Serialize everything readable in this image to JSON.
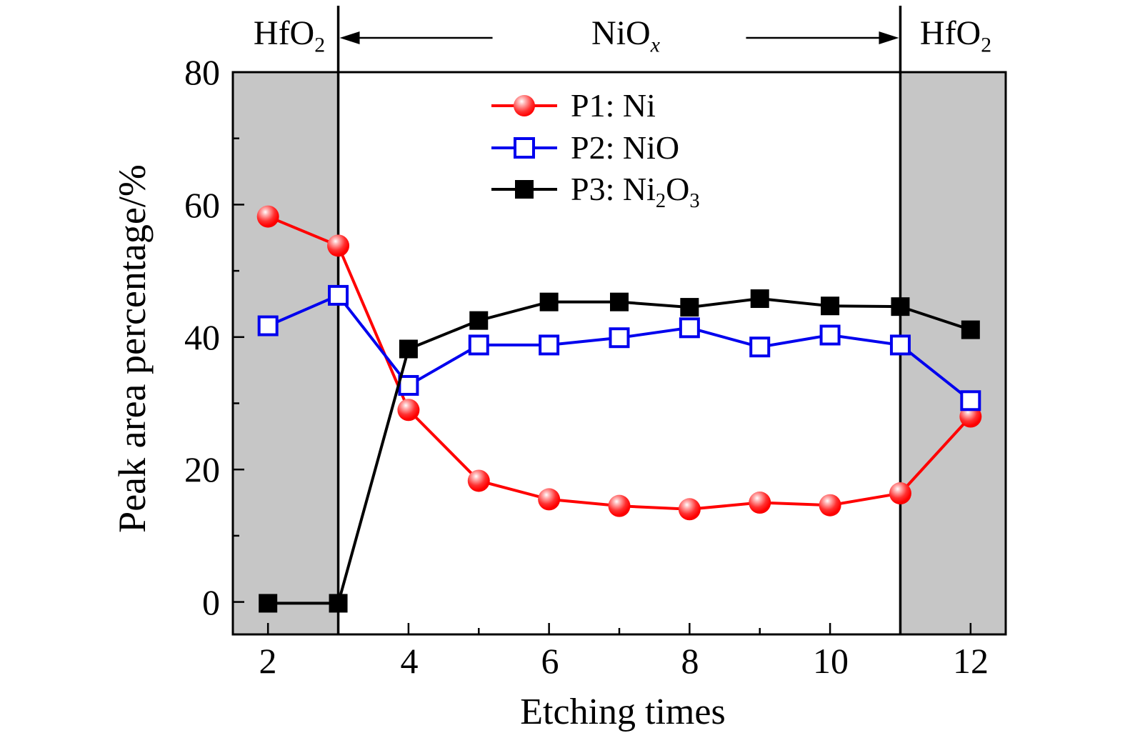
{
  "figure": {
    "x_axis_title": "Etching times",
    "y_axis_title": "Peak area percentage/%"
  },
  "header": {
    "left_region": {
      "base": "HfO",
      "sub": "2"
    },
    "middle_region": {
      "base": "NiO",
      "sub": "x"
    },
    "right_region": {
      "base": "HfO",
      "sub": "2"
    }
  },
  "legend": {
    "items": [
      {
        "t1": "P1: Ni",
        "s1": "",
        "t2": "",
        "s2": ""
      },
      {
        "t1": "P2: NiO",
        "s1": "",
        "t2": "",
        "s2": ""
      },
      {
        "t1": "P3: Ni",
        "s1": "2",
        "t2": "O",
        "s2": "3"
      }
    ]
  },
  "axes": {
    "x_tick_labels": [
      "2",
      "4",
      "6",
      "8",
      "10",
      "12"
    ],
    "y_tick_labels": [
      "80",
      "60",
      "40",
      "20",
      "0"
    ]
  },
  "chart_data": {
    "type": "line",
    "title": "",
    "xlabel": "Etching times",
    "ylabel": "Peak area percentage/%",
    "x": [
      2,
      3,
      4,
      5,
      6,
      7,
      8,
      9,
      10,
      11,
      12
    ],
    "series": [
      {
        "name": "P1: Ni",
        "color": "#ff0000",
        "marker": "sphere",
        "values": [
          58.2,
          53.8,
          29.0,
          18.3,
          15.5,
          14.5,
          14.0,
          15.0,
          14.6,
          16.4,
          28.0
        ]
      },
      {
        "name": "P2: NiO",
        "color": "#0000ee",
        "marker": "open-square",
        "values": [
          41.7,
          46.3,
          32.7,
          38.8,
          38.8,
          39.9,
          41.4,
          38.5,
          40.3,
          38.8,
          30.4
        ]
      },
      {
        "name": "P3: Ni2O3",
        "color": "#000000",
        "marker": "filled-square",
        "values": [
          -0.2,
          -0.2,
          38.2,
          42.5,
          45.3,
          45.3,
          44.5,
          45.8,
          44.7,
          44.6,
          41.1
        ]
      }
    ],
    "xlim": [
      1.5,
      12.5
    ],
    "ylim": [
      -4.9,
      80
    ],
    "x_major_ticks": [
      2,
      4,
      6,
      8,
      10,
      12
    ],
    "x_minor_ticks": [
      3,
      5,
      7,
      9,
      11
    ],
    "y_major_ticks": [
      0,
      20,
      40,
      60,
      80
    ],
    "y_minor_ticks": [
      10,
      30,
      50,
      70
    ],
    "grid": false,
    "legend_position": "upper-center-inside",
    "shaded_regions": [
      {
        "label": "HfO2",
        "from": 1.5,
        "to": 3,
        "shaded": true
      },
      {
        "label": "NiOx",
        "from": 3,
        "to": 11,
        "shaded": false
      },
      {
        "label": "HfO2",
        "from": 11,
        "to": 12.5,
        "shaded": true
      }
    ],
    "region_shade_color": "#c6c6c6",
    "region_dividers": [
      3,
      11
    ],
    "frame_color": "#000000",
    "background_color": "#ffffff"
  }
}
